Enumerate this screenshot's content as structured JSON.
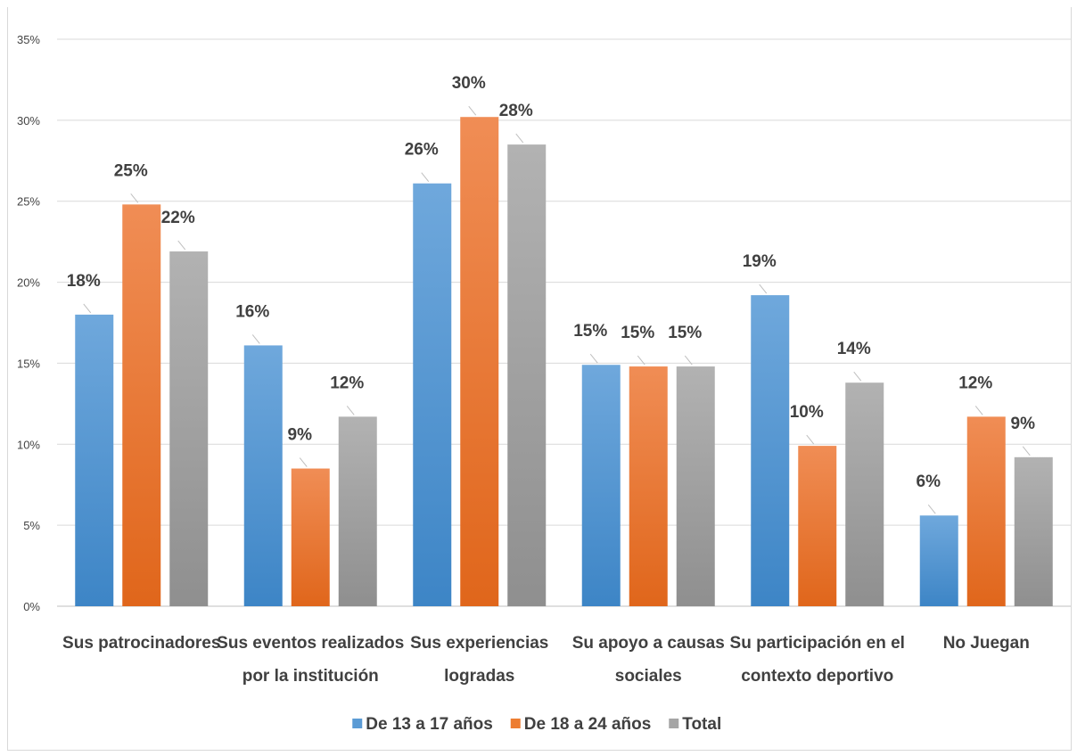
{
  "chart_data": {
    "type": "bar",
    "title": "",
    "xlabel": "",
    "ylabel": "",
    "ylim": [
      0,
      35
    ],
    "yticks": [
      "0%",
      "5%",
      "10%",
      "15%",
      "20%",
      "25%",
      "30%",
      "35%"
    ],
    "grid": true,
    "legend_position": "bottom",
    "categories": [
      [
        "Sus patrocinadores"
      ],
      [
        "Sus eventos realizados",
        "por la institución"
      ],
      [
        "Sus experiencias",
        "logradas"
      ],
      [
        "Su apoyo a causas",
        "sociales"
      ],
      [
        "Su participación en el",
        "contexto deportivo"
      ],
      [
        "No Juegan"
      ]
    ],
    "series": [
      {
        "name": "De 13 a 17 años",
        "color": "#5b9bd5",
        "values": [
          18,
          16.1,
          26.1,
          14.9,
          19.2,
          5.6
        ],
        "labels": [
          "18%",
          "16%",
          "26%",
          "15%",
          "19%",
          "6%"
        ]
      },
      {
        "name": "De 18 a 24 años",
        "color": "#ed7d31",
        "values": [
          24.8,
          8.5,
          30.2,
          14.8,
          9.9,
          11.7
        ],
        "labels": [
          "25%",
          "9%",
          "30%",
          "15%",
          "10%",
          "12%"
        ]
      },
      {
        "name": "Total",
        "color": "#a5a5a5",
        "values": [
          21.9,
          11.7,
          28.5,
          14.8,
          13.8,
          9.2
        ],
        "labels": [
          "22%",
          "12%",
          "28%",
          "15%",
          "14%",
          "9%"
        ]
      }
    ]
  }
}
